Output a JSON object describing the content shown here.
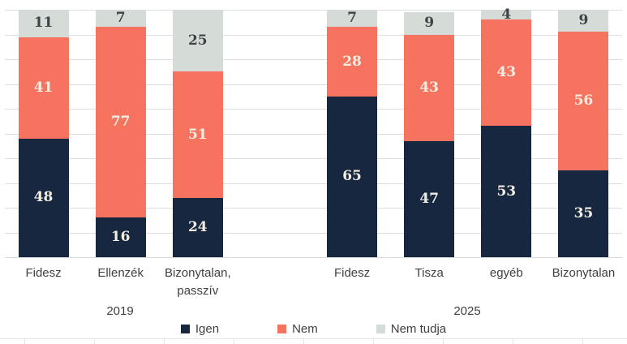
{
  "chart_data": {
    "type": "bar",
    "variant": "stacked-column",
    "unit": "percent",
    "ylim": [
      0,
      100
    ],
    "grid": {
      "horizontal": true,
      "interval": 10
    },
    "legend_position": "bottom",
    "series_names": [
      "Igen",
      "Nem",
      "Nem tudja"
    ],
    "series_colors": [
      "#17273f",
      "#f6745f",
      "#d5dcd8"
    ],
    "label_colors_on_series": [
      "#f3eee3",
      "#f3eee3",
      "#3f4347"
    ],
    "groups": [
      {
        "label": "2019",
        "categories": [
          {
            "label": "Fidesz",
            "values": [
              48,
              41,
              11
            ]
          },
          {
            "label": "Ellenzék",
            "values": [
              16,
              77,
              7
            ]
          },
          {
            "label": "Bizonytalan,\npasszív",
            "values": [
              24,
              51,
              25
            ]
          }
        ]
      },
      {
        "label": "2025",
        "categories": [
          {
            "label": "Fidesz",
            "values": [
              65,
              28,
              7
            ]
          },
          {
            "label": "Tisza",
            "values": [
              47,
              43,
              9
            ]
          },
          {
            "label": "egyéb",
            "values": [
              53,
              43,
              4
            ]
          },
          {
            "label": "Bizonytalan",
            "values": [
              35,
              56,
              9
            ]
          }
        ]
      }
    ],
    "legend": [
      {
        "label": "Igen",
        "color": "#17273f"
      },
      {
        "label": "Nem",
        "color": "#f6745f"
      },
      {
        "label": "Nem tudja",
        "color": "#d5dcd8"
      }
    ]
  },
  "layout_text": {
    "group_2019": "2019",
    "group_2025": "2025"
  }
}
